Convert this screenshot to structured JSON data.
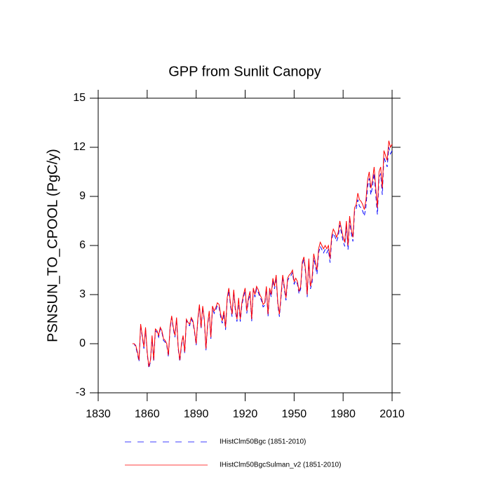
{
  "chart_data": {
    "type": "line",
    "title": "GPP from Sunlit Canopy",
    "ylabel": "PSNSUN_TO_CPOOL  (PgC/y)",
    "x": [
      1851,
      1852,
      1853,
      1854,
      1855,
      1856,
      1857,
      1858,
      1859,
      1860,
      1861,
      1862,
      1863,
      1864,
      1865,
      1866,
      1867,
      1868,
      1869,
      1870,
      1871,
      1872,
      1873,
      1874,
      1875,
      1876,
      1877,
      1878,
      1879,
      1880,
      1881,
      1882,
      1883,
      1884,
      1885,
      1886,
      1887,
      1888,
      1889,
      1890,
      1891,
      1892,
      1893,
      1894,
      1895,
      1896,
      1897,
      1898,
      1899,
      1900,
      1901,
      1902,
      1903,
      1904,
      1905,
      1906,
      1907,
      1908,
      1909,
      1910,
      1911,
      1912,
      1913,
      1914,
      1915,
      1916,
      1917,
      1918,
      1919,
      1920,
      1921,
      1922,
      1923,
      1924,
      1925,
      1926,
      1927,
      1928,
      1929,
      1930,
      1931,
      1932,
      1933,
      1934,
      1935,
      1936,
      1937,
      1938,
      1939,
      1940,
      1941,
      1942,
      1943,
      1944,
      1945,
      1946,
      1947,
      1948,
      1949,
      1950,
      1951,
      1952,
      1953,
      1954,
      1955,
      1956,
      1957,
      1958,
      1959,
      1960,
      1961,
      1962,
      1963,
      1964,
      1965,
      1966,
      1967,
      1968,
      1969,
      1970,
      1971,
      1972,
      1973,
      1974,
      1975,
      1976,
      1977,
      1978,
      1979,
      1980,
      1981,
      1982,
      1983,
      1984,
      1985,
      1986,
      1987,
      1988,
      1989,
      1990,
      1991,
      1992,
      1993,
      1994,
      1995,
      1996,
      1997,
      1998,
      1999,
      2000,
      2001,
      2002,
      2003,
      2004,
      2005,
      2006,
      2007,
      2008,
      2009,
      2010
    ],
    "series": [
      {
        "name": "IHistClm50Bgc (1851-2010)",
        "color": "#0000ff",
        "dash": true,
        "values": [
          0,
          0,
          -0.2,
          -0.6,
          -1.1,
          1.1,
          0.4,
          -0.3,
          0.9,
          -0.6,
          -1.5,
          -1.1,
          0.4,
          -1.1,
          0.8,
          0.7,
          0.4,
          0.9,
          0.7,
          0.2,
          0.1,
          -0.1,
          -0.8,
          0.9,
          1.6,
          0.9,
          0.4,
          1.5,
          -0.3,
          -1.1,
          -0.1,
          0.4,
          -0.6,
          1.4,
          1.2,
          1.1,
          1.5,
          1.3,
          0.7,
          -0.1,
          1.4,
          2.3,
          0.9,
          2.2,
          1.4,
          -0.4,
          1.1,
          1.9,
          0.3,
          2.2,
          1.85,
          2.05,
          2.35,
          2.25,
          1.65,
          1.25,
          1.85,
          0.85,
          2.65,
          3.25,
          2.35,
          1.65,
          3.15,
          2.05,
          1.35,
          2.65,
          1.35,
          2.35,
          2.85,
          3.25,
          1.85,
          2.65,
          3.05,
          1.35,
          3.25,
          2.85,
          3.35,
          3.15,
          2.85,
          2.65,
          2.25,
          2.35,
          3.35,
          1.65,
          3.25,
          2.85,
          3.85,
          3.35,
          4.05,
          2.35,
          1.65,
          2.85,
          4.05,
          3.35,
          2.65,
          3.85,
          4.05,
          4.15,
          4.35,
          3.65,
          3.85,
          3.65,
          3.05,
          3.35,
          4.85,
          5.15,
          4.35,
          2.85,
          5.05,
          3.35,
          3.75,
          5.25,
          4.75,
          4.25,
          5.55,
          5.95,
          5.75,
          5.55,
          5.75,
          5.55,
          5.75,
          4.95,
          6.35,
          6.75,
          6.55,
          6.25,
          6.55,
          7.25,
          6.75,
          6.25,
          5.95,
          7.25,
          5.75,
          7.55,
          6.75,
          6.25,
          8.05,
          8.25,
          8.8,
          8.4,
          8.3,
          8.1,
          7.8,
          8.4,
          9.6,
          10.1,
          9.1,
          9.6,
          10.4,
          9.1,
          7.9,
          10.1,
          10.4,
          9.1,
          11.4,
          11.1,
          10.8,
          12.0,
          11.6,
          11.8
        ]
      },
      {
        "name": "IHistClm50BgcSulman_v2 (1851-2010)",
        "color": "#ff0000",
        "dash": false,
        "values": [
          0,
          0,
          -0.1,
          -0.5,
          -1.0,
          1.2,
          0.5,
          -0.2,
          1.0,
          -0.5,
          -1.4,
          -1.0,
          0.5,
          -1.0,
          0.9,
          0.8,
          0.5,
          1.0,
          0.8,
          0.3,
          0.2,
          0.0,
          -0.7,
          1.0,
          1.7,
          1.0,
          0.5,
          1.6,
          -0.2,
          -1.0,
          0.0,
          0.5,
          -0.5,
          1.5,
          1.3,
          1.2,
          1.6,
          1.4,
          0.8,
          0.0,
          1.5,
          2.4,
          1.0,
          2.3,
          1.5,
          -0.3,
          1.2,
          2.0,
          0.4,
          2.3,
          2.0,
          2.2,
          2.5,
          2.4,
          1.8,
          1.4,
          2.0,
          1.0,
          2.8,
          3.4,
          2.5,
          1.8,
          3.3,
          2.2,
          1.5,
          2.8,
          1.5,
          2.5,
          3.0,
          3.4,
          2.0,
          2.8,
          3.2,
          1.5,
          3.4,
          3.0,
          3.5,
          3.3,
          3.0,
          2.8,
          2.4,
          2.5,
          3.5,
          1.8,
          3.4,
          3.0,
          4.0,
          3.5,
          4.2,
          2.5,
          1.8,
          3.0,
          4.2,
          3.5,
          2.8,
          4.0,
          4.2,
          4.3,
          4.5,
          3.8,
          4.0,
          3.8,
          3.2,
          3.5,
          5.0,
          5.3,
          4.5,
          3.0,
          5.2,
          3.5,
          4.0,
          5.5,
          5.0,
          4.5,
          5.8,
          6.2,
          6.0,
          5.8,
          6.0,
          5.8,
          6.0,
          5.2,
          6.6,
          7.0,
          6.8,
          6.5,
          6.8,
          7.5,
          7.0,
          6.5,
          6.2,
          7.5,
          6.0,
          7.8,
          7.0,
          6.5,
          8.3,
          8.5,
          9.2,
          8.8,
          8.7,
          8.5,
          8.2,
          8.8,
          10.0,
          10.5,
          9.5,
          10.0,
          10.8,
          9.5,
          8.3,
          10.5,
          10.8,
          9.5,
          11.8,
          11.5,
          11.2,
          12.4,
          12.0,
          12.2
        ]
      }
    ],
    "xlim": [
      1830,
      2010
    ],
    "xticks": [
      1830,
      1860,
      1890,
      1920,
      1950,
      1980,
      2010
    ],
    "ylim": [
      -3,
      15
    ],
    "yticks": [
      -3,
      0,
      3,
      6,
      9,
      12,
      15
    ],
    "grid": false
  }
}
